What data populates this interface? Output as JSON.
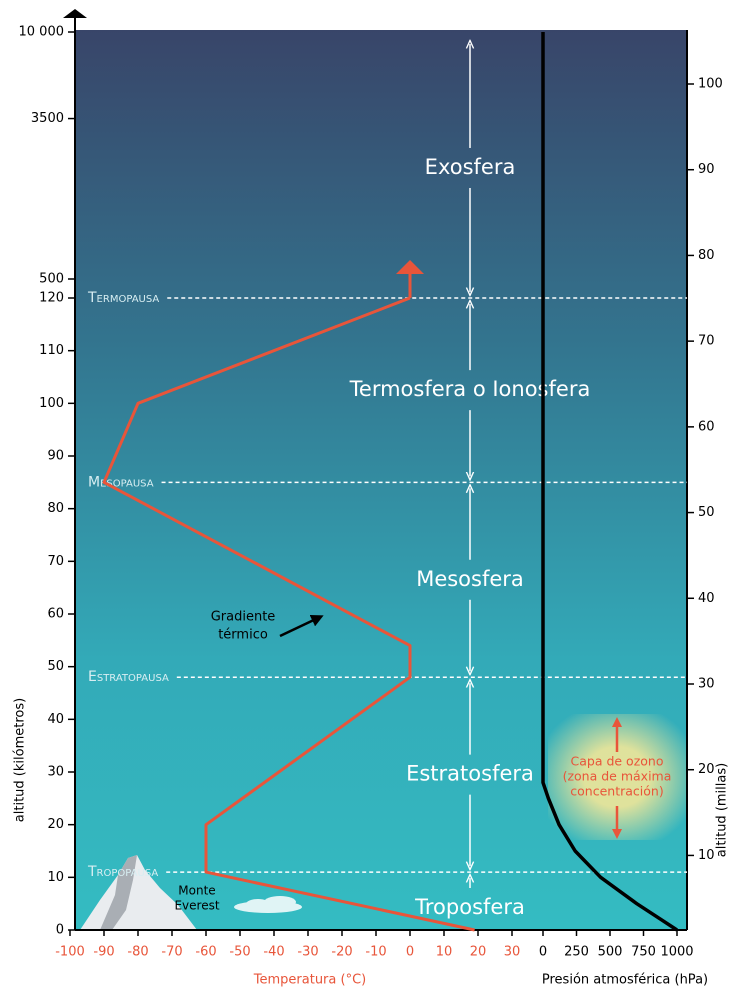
{
  "chart_data": {
    "type": "atmosphere",
    "y_axis_label": "altitud (kilómetros)",
    "y2_axis_label": "altitud (millas)",
    "ylim": [
      0,
      120
    ],
    "yticks": [
      0,
      10,
      20,
      30,
      40,
      50,
      60,
      70,
      80,
      90,
      100,
      110,
      120
    ],
    "y_upper": {
      "scale": "log",
      "ylim": [
        500,
        10000
      ],
      "yticks": [
        500,
        3500,
        {
          "value": 10000,
          "label": "10 000"
        }
      ]
    },
    "y2lim": [
      1.3,
      106.3
    ],
    "y2ticks": [
      10,
      20,
      30,
      40,
      50,
      60,
      70,
      80,
      90,
      100
    ],
    "temperature": {
      "axis_label": "Temperatura (°C)",
      "color": "#e8553a",
      "xlim": [
        -100,
        30
      ],
      "xticks": [
        -100,
        -90,
        -80,
        -70,
        -60,
        -50,
        -40,
        -30,
        -20,
        -10,
        0,
        10,
        20,
        30
      ],
      "altitudes": [
        0,
        11,
        20,
        48,
        54,
        85,
        100,
        121
      ],
      "values": [
        19,
        -60,
        -60,
        0,
        0,
        -90,
        -80,
        0
      ]
    },
    "pressure": {
      "axis_label": "Presión atmosférica (hPa)",
      "color": "#000000",
      "xlim": [
        0,
        1000
      ],
      "xticks": [
        0,
        250,
        500,
        750,
        1000
      ],
      "altitudes": [
        0,
        2,
        5,
        10,
        15,
        20,
        25,
        28,
        10000
      ],
      "values": [
        1000,
        880,
        700,
        430,
        240,
        120,
        40,
        0,
        0
      ]
    },
    "boundaries": [
      {
        "name": "Tropopausa",
        "altitude": 11
      },
      {
        "name": "Estratopausa",
        "altitude": 48
      },
      {
        "name": "Mesopausa",
        "altitude": 85
      },
      {
        "name": "Termopausa",
        "altitude": 121
      }
    ],
    "layers": [
      {
        "name": "Troposfera",
        "bottom": 0,
        "top": 11
      },
      {
        "name": "Estratosfera",
        "bottom": 11,
        "top": 48
      },
      {
        "name": "Mesosfera",
        "bottom": 48,
        "top": 85
      },
      {
        "name": "Termosfera o Ionosfera",
        "bottom": 85,
        "top": 121
      },
      {
        "name": "Exosfera",
        "bottom": 121,
        "top": 10000
      }
    ],
    "annotations": {
      "gradient": [
        "Gradiente",
        "térmico"
      ],
      "everest": [
        "Monte",
        "Everest"
      ],
      "ozone": [
        "Capa de ozono",
        "(zona de máxima",
        "concentración)"
      ]
    }
  }
}
